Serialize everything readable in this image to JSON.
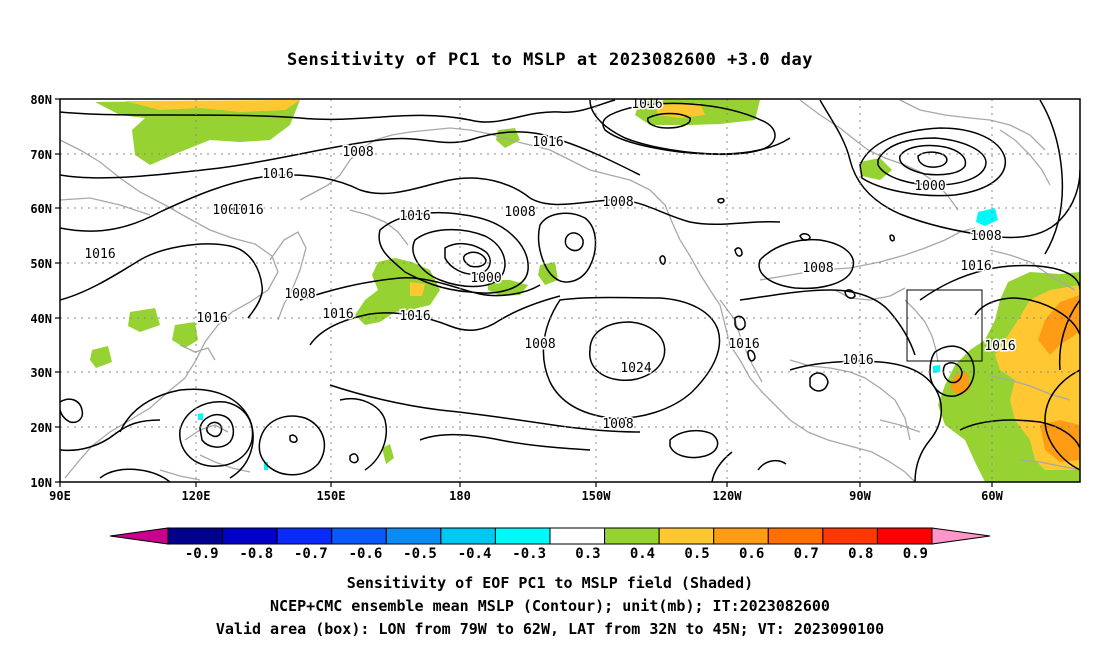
{
  "title": "Sensitivity of PC1 to MSLP at 2023082600 +3.0 day",
  "map": {
    "lat_labels": [
      "80N",
      "70N",
      "60N",
      "50N",
      "40N",
      "30N",
      "20N",
      "10N"
    ],
    "lon_labels": [
      "90E",
      "120E",
      "150E",
      "180",
      "150W",
      "120W",
      "90W",
      "60W"
    ],
    "contour_labels": [
      "1008",
      "1016",
      "1008",
      "1016",
      "1016",
      "1008",
      "1016",
      "1016",
      "1016",
      "1016",
      "1000",
      "1016",
      "1008",
      "1008",
      "1016",
      "1000",
      "1008",
      "1016",
      "1008",
      "1016",
      "1024",
      "1008",
      "1008",
      "1016",
      "1016"
    ],
    "valid_box": {
      "lon": [
        -79,
        -62
      ],
      "lat": [
        32,
        45
      ]
    }
  },
  "colorbar": {
    "labels": [
      "-0.9",
      "-0.8",
      "-0.7",
      "-0.6",
      "-0.5",
      "-0.4",
      "-0.3",
      "0.3",
      "0.4",
      "0.5",
      "0.6",
      "0.7",
      "0.8",
      "0.9"
    ],
    "colors": [
      "#00008c",
      "#0000c8",
      "#0a2afa",
      "#0a5afa",
      "#0a8cf5",
      "#00c8f0",
      "#00fafa",
      "#ffffff",
      "#96d232",
      "#ffc832",
      "#ff9b14",
      "#ff6e00",
      "#ff3700",
      "#ff0000"
    ],
    "left_tri_color": "#c8008c",
    "right_tri_color": "#ff96c8"
  },
  "captions": {
    "line1": "Sensitivity of EOF PC1 to MSLP field (Shaded)",
    "line2": "NCEP+CMC ensemble mean MSLP (Contour); unit(mb); IT:2023082600",
    "line3": "Valid area (box): LON from 79W to 62W, LAT from 32N to 45N; VT: 2023090100"
  }
}
